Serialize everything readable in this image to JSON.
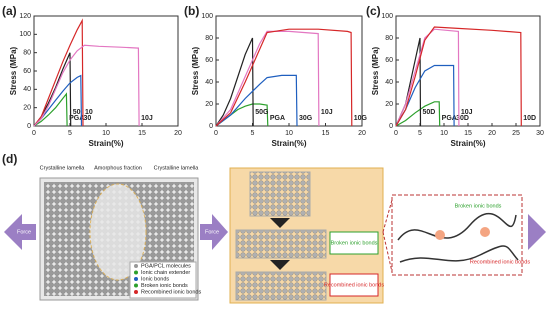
{
  "panel_labels": [
    "(a)",
    "(b)",
    "(c)",
    "(d)"
  ],
  "chart_data": [
    {
      "type": "line",
      "x_label": "Strain(%)",
      "y_label": "Stress (MPa)",
      "xlim": [
        0,
        20
      ],
      "xticks": [
        0,
        5,
        10,
        15,
        20
      ],
      "ylim": [
        0,
        120
      ],
      "yticks": [
        0,
        20,
        40,
        60,
        80,
        100,
        120
      ],
      "series": [
        {
          "name": "PGA",
          "color": "#2ca02c",
          "x": [
            0,
            1,
            2,
            3,
            4,
            4.5,
            4.6
          ],
          "values": [
            0,
            5,
            12,
            20,
            30,
            35,
            0
          ]
        },
        {
          "name": "50",
          "color": "#222222",
          "x": [
            0,
            1,
            2,
            3,
            4,
            5,
            5.1
          ],
          "values": [
            0,
            10,
            25,
            42,
            62,
            80,
            0
          ]
        },
        {
          "name": "30",
          "color": "#1f5fbf",
          "x": [
            0,
            1,
            2,
            3,
            4,
            5,
            6,
            6.5,
            6.6
          ],
          "values": [
            0,
            8,
            18,
            28,
            38,
            47,
            53,
            55,
            0
          ]
        },
        {
          "name": "10",
          "color": "#d62728",
          "x": [
            0,
            1,
            2,
            3,
            4,
            5,
            6,
            6.7,
            6.8
          ],
          "values": [
            0,
            10,
            30,
            50,
            70,
            88,
            105,
            115,
            0
          ]
        },
        {
          "name": "10J",
          "color": "#e377c2",
          "x": [
            0,
            1,
            2,
            3,
            4,
            5,
            6,
            7,
            9,
            12,
            14.5,
            14.6
          ],
          "values": [
            0,
            8,
            22,
            40,
            58,
            72,
            82,
            88,
            87,
            86,
            85,
            0
          ]
        }
      ]
    },
    {
      "type": "line",
      "x_label": "Strain(%)",
      "y_label": "Stress (MPa)",
      "xlim": [
        0,
        20
      ],
      "xticks": [
        0,
        5,
        10,
        15,
        20
      ],
      "ylim": [
        0,
        100
      ],
      "yticks": [
        0,
        20,
        40,
        60,
        80,
        100
      ],
      "series": [
        {
          "name": "PGA",
          "color": "#2ca02c",
          "x": [
            0,
            1,
            2,
            3,
            4,
            5,
            6,
            7,
            7.1
          ],
          "values": [
            0,
            5,
            10,
            15,
            18,
            20,
            20,
            19,
            0
          ]
        },
        {
          "name": "50G",
          "color": "#222222",
          "x": [
            0,
            1,
            2,
            3,
            4,
            5,
            5.1
          ],
          "values": [
            0,
            10,
            25,
            45,
            65,
            80,
            0
          ]
        },
        {
          "name": "30G",
          "color": "#1f5fbf",
          "x": [
            0,
            2,
            4,
            6,
            7,
            9,
            11,
            11.1
          ],
          "values": [
            0,
            10,
            25,
            38,
            44,
            46,
            46,
            0
          ]
        },
        {
          "name": "10J",
          "color": "#e377c2",
          "x": [
            0,
            2,
            4,
            6,
            7,
            10,
            14,
            14.1
          ],
          "values": [
            0,
            15,
            45,
            75,
            86,
            86,
            84,
            0
          ]
        },
        {
          "name": "10G",
          "color": "#d62728",
          "x": [
            0,
            2,
            4,
            6,
            7,
            10,
            14,
            18,
            18.5,
            18.6
          ],
          "values": [
            0,
            12,
            40,
            70,
            85,
            88,
            88,
            86,
            85,
            0
          ]
        }
      ]
    },
    {
      "type": "line",
      "x_label": "Strain(%)",
      "y_label": "Stress (MPa)",
      "xlim": [
        0,
        30
      ],
      "xticks": [
        0,
        5,
        10,
        15,
        20,
        25,
        30
      ],
      "ylim": [
        0,
        100
      ],
      "yticks": [
        0,
        20,
        40,
        60,
        80,
        100
      ],
      "series": [
        {
          "name": "PGA",
          "color": "#2ca02c",
          "x": [
            0,
            2,
            4,
            6,
            8,
            9,
            9.1
          ],
          "values": [
            0,
            5,
            12,
            18,
            22,
            22,
            0
          ]
        },
        {
          "name": "50D",
          "color": "#222222",
          "x": [
            0,
            2,
            4,
            5,
            5.1
          ],
          "values": [
            0,
            20,
            60,
            80,
            0
          ]
        },
        {
          "name": "30D",
          "color": "#1f5fbf",
          "x": [
            0,
            2,
            4,
            6,
            8,
            10,
            12,
            12.1
          ],
          "values": [
            0,
            15,
            35,
            50,
            55,
            55,
            55,
            0
          ]
        },
        {
          "name": "10J",
          "color": "#e377c2",
          "x": [
            0,
            2,
            4,
            6,
            8,
            13,
            13.1
          ],
          "values": [
            0,
            20,
            50,
            80,
            88,
            86,
            0
          ]
        },
        {
          "name": "10D",
          "color": "#d62728",
          "x": [
            0,
            2,
            4,
            6,
            8,
            12,
            20,
            26,
            26.1
          ],
          "values": [
            0,
            15,
            45,
            78,
            90,
            89,
            87,
            85,
            0
          ]
        }
      ]
    }
  ],
  "diagram": {
    "top_labels": [
      "Crystalline lamella",
      "Amorphous fraction",
      "Crystalline lamella"
    ],
    "force": [
      "Force",
      "Force"
    ],
    "legend": [
      "PGA/PCL molecules",
      "Ionic chain extender",
      "Ionic bonds",
      "Broken ionic bonds",
      "Recombined ionic bonds"
    ],
    "middle_notes": [
      "Broken ionic bonds",
      "Recombined ionic bonds"
    ],
    "right_notes": [
      "Broken ionic bonds",
      "Recombined ionic bonds"
    ]
  }
}
